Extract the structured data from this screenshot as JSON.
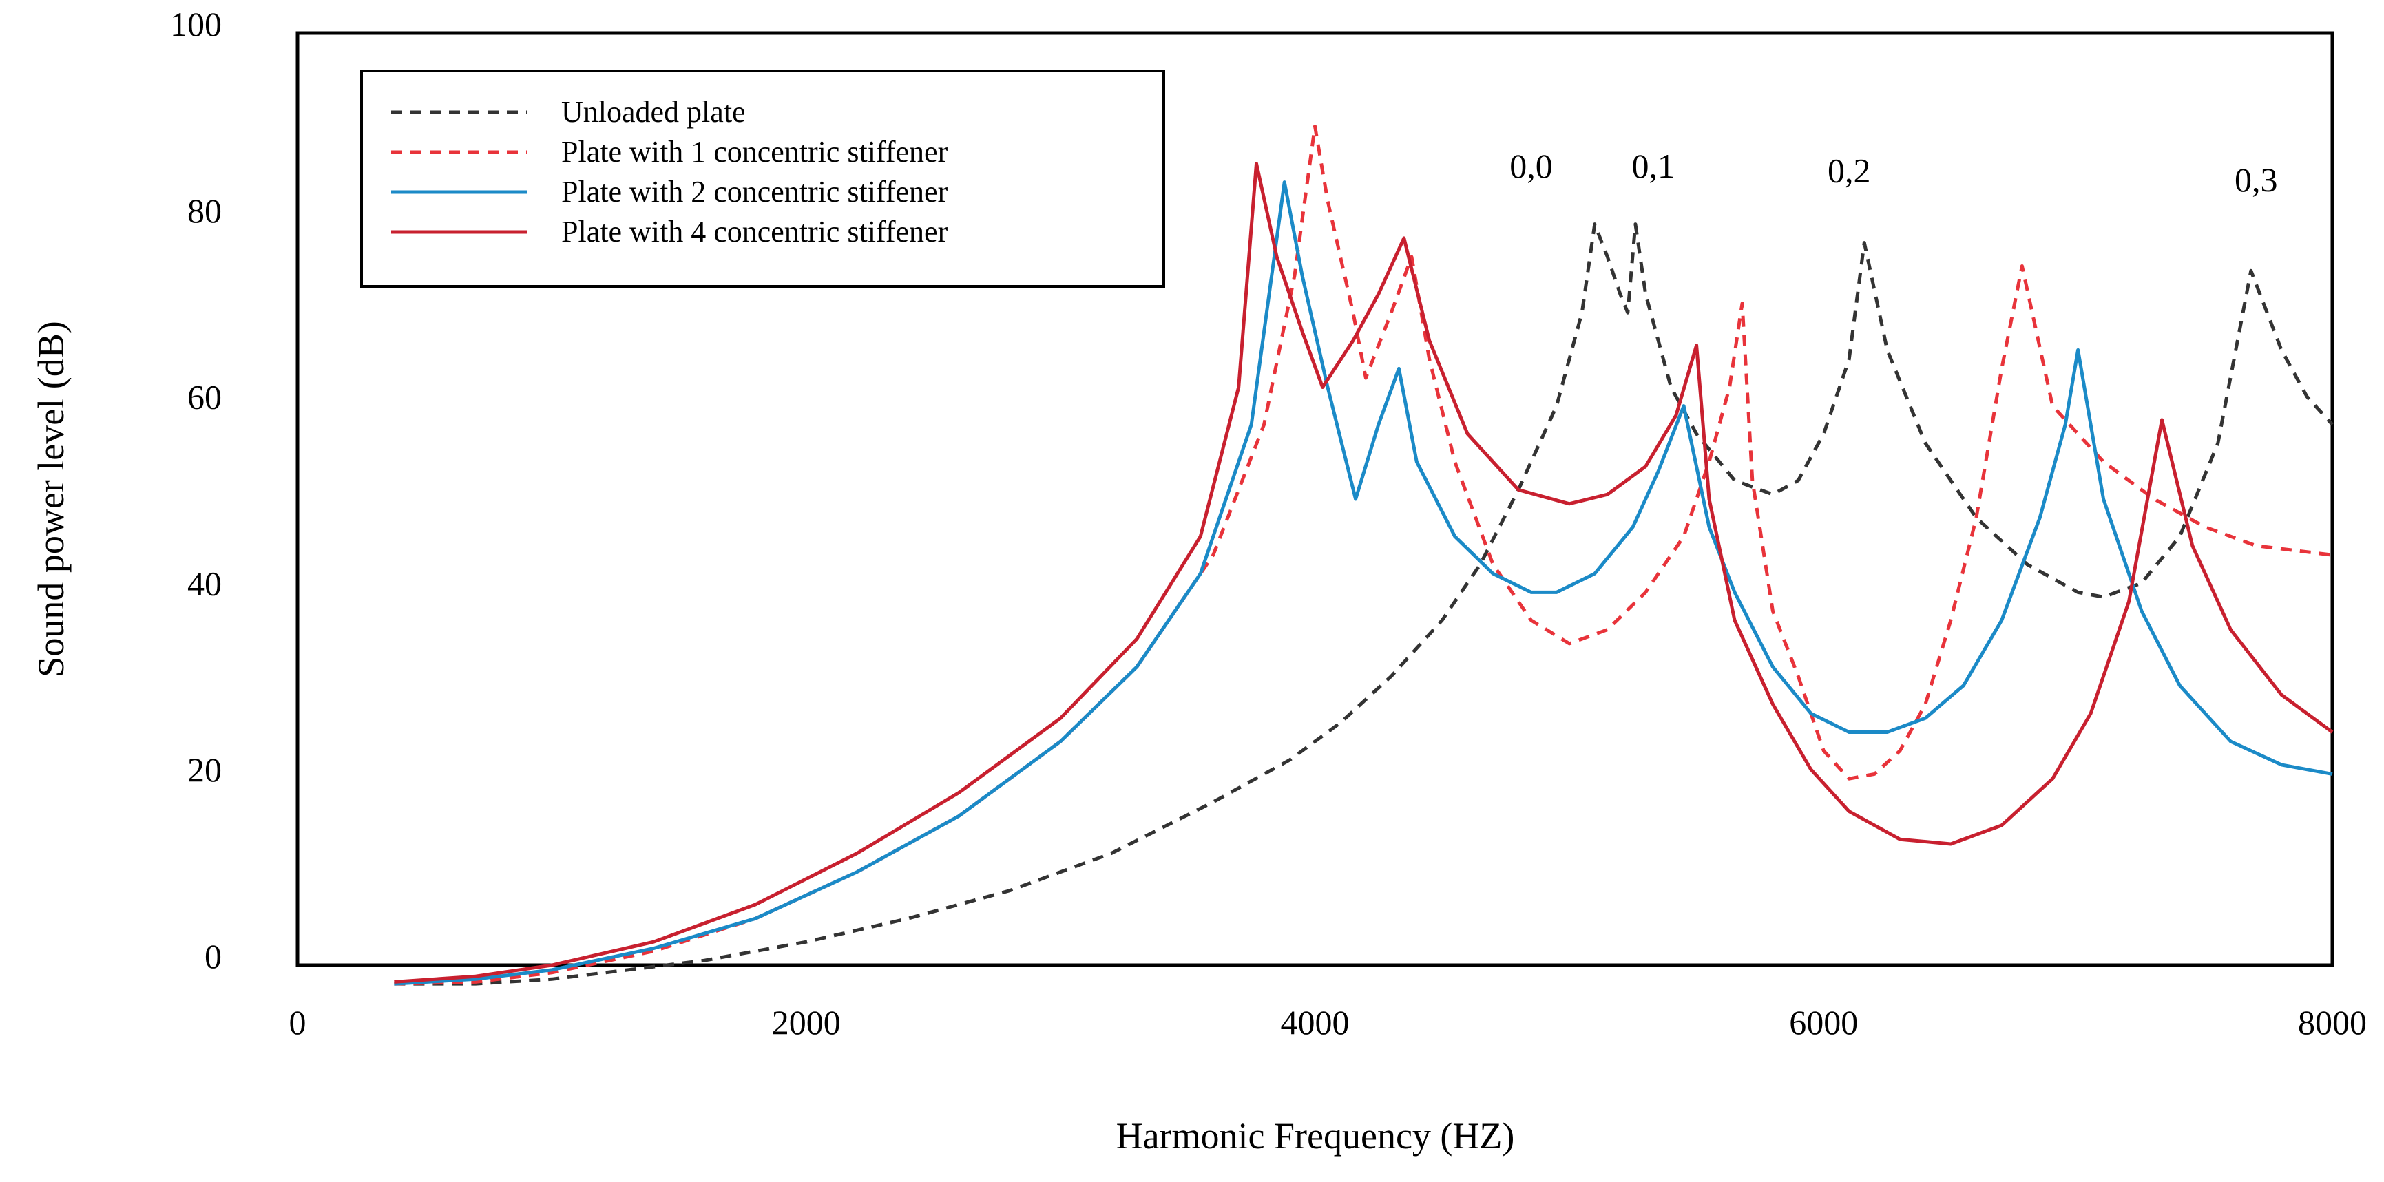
{
  "chart_data": {
    "type": "line",
    "title": "",
    "xlabel": "Harmonic Frequency (HZ)",
    "ylabel": "Sound power level (dB)",
    "xlim": [
      0,
      8000
    ],
    "ylim": [
      0,
      100
    ],
    "xticks": [
      0,
      2000,
      4000,
      6000,
      8000
    ],
    "yticks": [
      0,
      20,
      40,
      60,
      80,
      100
    ],
    "grid": false,
    "legend_position": "top-left",
    "annotations": [
      {
        "text": "0,0",
        "x": 4850,
        "y": 84.5
      },
      {
        "text": "0,1",
        "x": 5330,
        "y": 84.5
      },
      {
        "text": "0,2",
        "x": 6100,
        "y": 84
      },
      {
        "text": "0,3",
        "x": 7700,
        "y": 83
      }
    ],
    "series": [
      {
        "name": "Unloaded plate",
        "color": "#333333",
        "dash": "dashed",
        "points": [
          [
            380,
            -2
          ],
          [
            700,
            -2
          ],
          [
            1000,
            -1.5
          ],
          [
            1300,
            -0.5
          ],
          [
            1600,
            0.5
          ],
          [
            2000,
            2.5
          ],
          [
            2400,
            5
          ],
          [
            2800,
            8
          ],
          [
            3200,
            12
          ],
          [
            3600,
            17.5
          ],
          [
            3900,
            22
          ],
          [
            4100,
            26
          ],
          [
            4300,
            31
          ],
          [
            4500,
            37
          ],
          [
            4650,
            43
          ],
          [
            4800,
            51
          ],
          [
            4950,
            60
          ],
          [
            5050,
            70
          ],
          [
            5100,
            79.5
          ],
          [
            5150,
            76
          ],
          [
            5200,
            72
          ],
          [
            5230,
            70
          ],
          [
            5260,
            79.5
          ],
          [
            5300,
            72
          ],
          [
            5400,
            62
          ],
          [
            5500,
            57
          ],
          [
            5650,
            52
          ],
          [
            5800,
            50.5
          ],
          [
            5900,
            52
          ],
          [
            6000,
            57
          ],
          [
            6100,
            65
          ],
          [
            6160,
            77.5
          ],
          [
            6250,
            66
          ],
          [
            6400,
            56
          ],
          [
            6600,
            48
          ],
          [
            6800,
            43
          ],
          [
            7000,
            40
          ],
          [
            7100,
            39.5
          ],
          [
            7250,
            41
          ],
          [
            7400,
            46
          ],
          [
            7550,
            56
          ],
          [
            7680,
            74.5
          ],
          [
            7800,
            66
          ],
          [
            7900,
            61
          ],
          [
            8000,
            58
          ]
        ]
      },
      {
        "name": "Plate with 1 concentric stiffener",
        "color": "#e8333a",
        "dash": "dashed",
        "points": [
          [
            380,
            -2
          ],
          [
            700,
            -1.8
          ],
          [
            1000,
            -0.8
          ],
          [
            1400,
            1.5
          ],
          [
            1800,
            5
          ],
          [
            2200,
            10
          ],
          [
            2600,
            16
          ],
          [
            3000,
            24
          ],
          [
            3300,
            32
          ],
          [
            3600,
            44
          ],
          [
            3800,
            58
          ],
          [
            3920,
            74
          ],
          [
            4000,
            90
          ],
          [
            4050,
            82
          ],
          [
            4150,
            70
          ],
          [
            4200,
            63
          ],
          [
            4300,
            70
          ],
          [
            4380,
            76
          ],
          [
            4450,
            65
          ],
          [
            4550,
            54
          ],
          [
            4700,
            43
          ],
          [
            4850,
            37
          ],
          [
            5000,
            34.5
          ],
          [
            5150,
            36
          ],
          [
            5300,
            40
          ],
          [
            5450,
            46
          ],
          [
            5550,
            54
          ],
          [
            5630,
            62
          ],
          [
            5680,
            71
          ],
          [
            5720,
            52
          ],
          [
            5800,
            38
          ],
          [
            5900,
            31
          ],
          [
            6000,
            23
          ],
          [
            6100,
            20
          ],
          [
            6200,
            20.5
          ],
          [
            6300,
            23
          ],
          [
            6400,
            28
          ],
          [
            6500,
            37
          ],
          [
            6600,
            48
          ],
          [
            6700,
            64
          ],
          [
            6780,
            75
          ],
          [
            6900,
            60
          ],
          [
            7100,
            54
          ],
          [
            7300,
            50
          ],
          [
            7500,
            47
          ],
          [
            7700,
            45
          ],
          [
            8000,
            44
          ]
        ]
      },
      {
        "name": "Plate with 2 concentric stiffener",
        "color": "#1b8ac7",
        "dash": "solid",
        "points": [
          [
            380,
            -2
          ],
          [
            700,
            -1.5
          ],
          [
            1000,
            -0.5
          ],
          [
            1400,
            1.8
          ],
          [
            1800,
            5
          ],
          [
            2200,
            10
          ],
          [
            2600,
            16
          ],
          [
            3000,
            24
          ],
          [
            3300,
            32
          ],
          [
            3550,
            42
          ],
          [
            3750,
            58
          ],
          [
            3880,
            84
          ],
          [
            3950,
            74
          ],
          [
            4050,
            62
          ],
          [
            4160,
            50
          ],
          [
            4250,
            58
          ],
          [
            4330,
            64
          ],
          [
            4400,
            54
          ],
          [
            4550,
            46
          ],
          [
            4700,
            42
          ],
          [
            4850,
            40
          ],
          [
            4950,
            40
          ],
          [
            5100,
            42
          ],
          [
            5250,
            47
          ],
          [
            5350,
            53
          ],
          [
            5450,
            60
          ],
          [
            5550,
            47
          ],
          [
            5650,
            40
          ],
          [
            5800,
            32
          ],
          [
            5950,
            27
          ],
          [
            6100,
            25
          ],
          [
            6250,
            25
          ],
          [
            6400,
            26.5
          ],
          [
            6550,
            30
          ],
          [
            6700,
            37
          ],
          [
            6850,
            48
          ],
          [
            6950,
            58
          ],
          [
            7000,
            66
          ],
          [
            7100,
            50
          ],
          [
            7250,
            38
          ],
          [
            7400,
            30
          ],
          [
            7600,
            24
          ],
          [
            7800,
            21.5
          ],
          [
            8000,
            20.5
          ]
        ]
      },
      {
        "name": "Plate with 4 concentric stiffener",
        "color": "#c8202f",
        "dash": "solid",
        "points": [
          [
            380,
            -1.8
          ],
          [
            700,
            -1.2
          ],
          [
            1000,
            0
          ],
          [
            1400,
            2.5
          ],
          [
            1800,
            6.5
          ],
          [
            2200,
            12
          ],
          [
            2600,
            18.5
          ],
          [
            3000,
            26.5
          ],
          [
            3300,
            35
          ],
          [
            3550,
            46
          ],
          [
            3700,
            62
          ],
          [
            3770,
            86
          ],
          [
            3850,
            76
          ],
          [
            3950,
            68
          ],
          [
            4030,
            62
          ],
          [
            4150,
            67
          ],
          [
            4250,
            72
          ],
          [
            4350,
            78
          ],
          [
            4450,
            67
          ],
          [
            4600,
            57
          ],
          [
            4800,
            51
          ],
          [
            5000,
            49.5
          ],
          [
            5150,
            50.5
          ],
          [
            5300,
            53.5
          ],
          [
            5420,
            59
          ],
          [
            5500,
            66.5
          ],
          [
            5550,
            50
          ],
          [
            5650,
            37
          ],
          [
            5800,
            28
          ],
          [
            5950,
            21
          ],
          [
            6100,
            16.5
          ],
          [
            6300,
            13.5
          ],
          [
            6500,
            13
          ],
          [
            6700,
            15
          ],
          [
            6900,
            20
          ],
          [
            7050,
            27
          ],
          [
            7200,
            39
          ],
          [
            7330,
            58.5
          ],
          [
            7450,
            45
          ],
          [
            7600,
            36
          ],
          [
            7800,
            29
          ],
          [
            8000,
            25
          ]
        ]
      }
    ]
  }
}
